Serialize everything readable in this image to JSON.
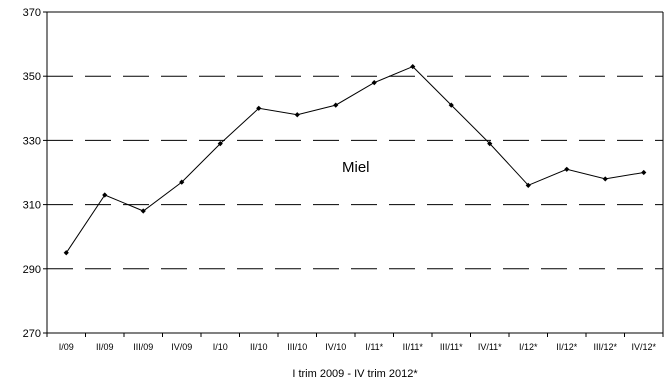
{
  "chart_data": {
    "type": "line",
    "title": "",
    "xlabel": "I trim 2009 - IV trim 2012*",
    "ylabel": "",
    "ylim": [
      270,
      370
    ],
    "yticks": [
      270,
      290,
      310,
      330,
      350,
      370
    ],
    "grid": "horizontal dashed",
    "categories": [
      "I/09",
      "II/09",
      "III/09",
      "IV/09",
      "I/10",
      "II/10",
      "III/10",
      "IV/10",
      "I/11*",
      "II/11*",
      "III/11*",
      "IV/11*",
      "I/12*",
      "II/12*",
      "III/12*",
      "IV/12*"
    ],
    "series": [
      {
        "name": "",
        "values": [
          295,
          313,
          308,
          317,
          329,
          340,
          338,
          341,
          348,
          353,
          341,
          329,
          316,
          321,
          318,
          320
        ]
      }
    ],
    "annotations": [
      {
        "text": "Miel"
      }
    ],
    "colors": {
      "line": "#000000",
      "grid": "#000000",
      "axis": "#000000"
    }
  }
}
